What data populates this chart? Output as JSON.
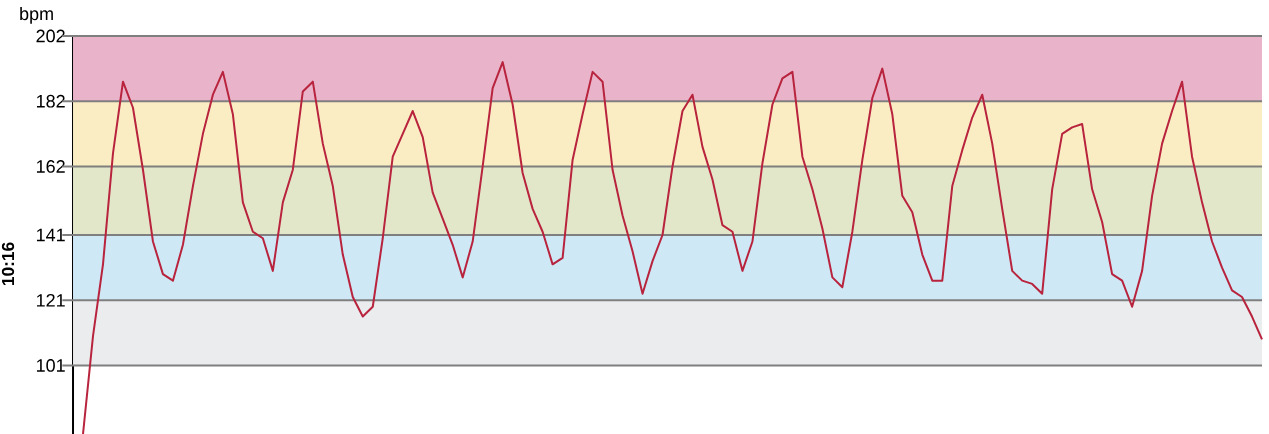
{
  "chart_data": {
    "type": "line",
    "ylabel": "bpm",
    "annotations": [
      "10:16"
    ],
    "categories": [
      null,
      null,
      null,
      null,
      null,
      null,
      null,
      null,
      null,
      null,
      null,
      null,
      null,
      null,
      null,
      null,
      null,
      null,
      null,
      null,
      null,
      null,
      null,
      null,
      null,
      null,
      null,
      null,
      null,
      null,
      null,
      null,
      null,
      null,
      null,
      null,
      null,
      null,
      null,
      null,
      null,
      null,
      null,
      null,
      null,
      null,
      null,
      null,
      null,
      null,
      null,
      null,
      null,
      null,
      null,
      null,
      null,
      null,
      null,
      null,
      null,
      null,
      null,
      null,
      null,
      null,
      null,
      null,
      null,
      null,
      null,
      null,
      null,
      null,
      null,
      null,
      null,
      null,
      null,
      null,
      null,
      null,
      null,
      null,
      null,
      null,
      null,
      null,
      null,
      null,
      null,
      null,
      null,
      null,
      null,
      null,
      null,
      null,
      null,
      null,
      null,
      null,
      null,
      null,
      null,
      null,
      null,
      null,
      null,
      null,
      null,
      null,
      null,
      null,
      null,
      null,
      null,
      null,
      null
    ],
    "series": [
      {
        "color": "#b8233d",
        "values": [
          80,
          110,
          132,
          166,
          188,
          180,
          161,
          139,
          129,
          127,
          138,
          156,
          172,
          184,
          191,
          178,
          151,
          142,
          140,
          130,
          151,
          161,
          185,
          188,
          169,
          156,
          135,
          122,
          116,
          119,
          140,
          165,
          172,
          179,
          171,
          154,
          146,
          138,
          128,
          139,
          162,
          186,
          194,
          181,
          160,
          149,
          142,
          132,
          134,
          164,
          178,
          191,
          188,
          161,
          147,
          136,
          123,
          133,
          141,
          162,
          179,
          184,
          168,
          158,
          144,
          142,
          130,
          139,
          163,
          181,
          189,
          191,
          165,
          155,
          143,
          128,
          125,
          142,
          164,
          183,
          192,
          178,
          153,
          148,
          135,
          127,
          127,
          156,
          167,
          177,
          184,
          169,
          149,
          130,
          127,
          126,
          123,
          155,
          172,
          174,
          175,
          155,
          145,
          129,
          127,
          119,
          130,
          153,
          169,
          179,
          188,
          165,
          151,
          139,
          131,
          124,
          122,
          116,
          109
        ]
      }
    ],
    "ylim": [
      80,
      202
    ],
    "yticks": [
      202,
      182,
      162,
      141,
      121,
      101
    ],
    "bands": [
      {
        "axis": "y",
        "from": 182,
        "to": 202,
        "color": "#e9b3c9"
      },
      {
        "axis": "y",
        "from": 162,
        "to": 182,
        "color": "#fbedc3"
      },
      {
        "axis": "y",
        "from": 141,
        "to": 162,
        "color": "#e3e7ca"
      },
      {
        "axis": "y",
        "from": 121,
        "to": 141,
        "color": "#cfe8f5"
      },
      {
        "axis": "y",
        "from": 101,
        "to": 121,
        "color": "#eaecee"
      }
    ],
    "grid": "y",
    "tick_labels": "y",
    "line_style": "solid",
    "marker": "none"
  }
}
